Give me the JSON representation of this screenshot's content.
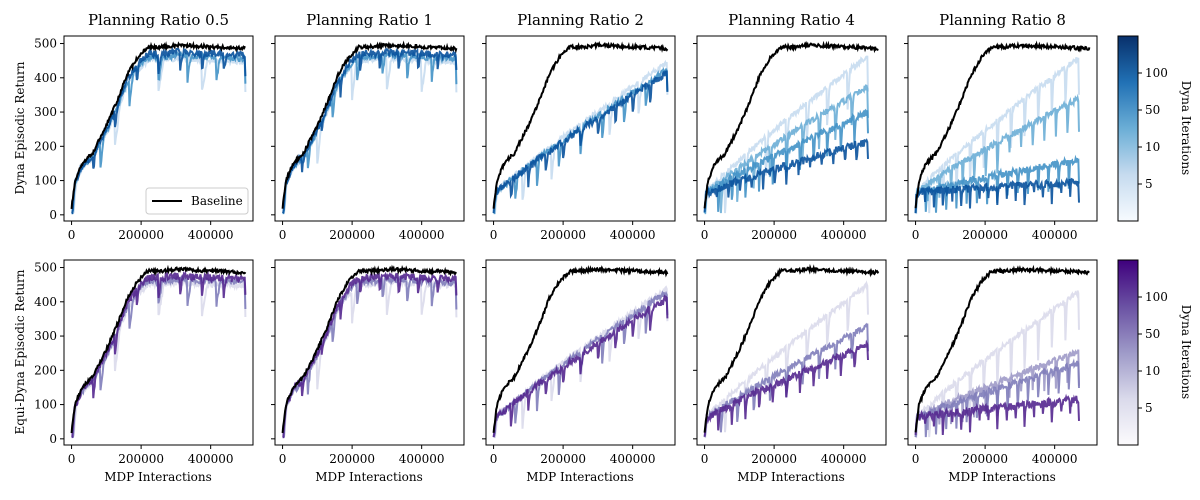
{
  "figure": {
    "legend_label": "Baseline",
    "x_label": "MDP Interactions",
    "row_y_labels": [
      "Dyna Episodic Return",
      "Equi-Dyna Episodic Return"
    ],
    "colorbar_label": "Dyna Iterations",
    "colorbar_ticks": [
      "5",
      "10",
      "50",
      "100"
    ]
  },
  "chart_data": {
    "type": "line",
    "xlim": [
      0,
      500000
    ],
    "ylim": [
      0,
      500
    ],
    "xticks": [
      0,
      200000,
      400000
    ],
    "yticks": [
      0,
      100,
      200,
      300,
      400,
      500
    ],
    "planning_ratios": [
      0.5,
      1,
      2,
      4,
      8
    ],
    "panel_titles": [
      "Planning Ratio 0.5",
      "Planning Ratio 1",
      "Planning Ratio 2",
      "Planning Ratio 4",
      "Planning Ratio 8"
    ],
    "rows": [
      "Dyna",
      "Equi-Dyna"
    ],
    "colormaps": {
      "Dyna": "Blues",
      "Equi-Dyna": "Purples"
    },
    "baseline": {
      "name": "Baseline",
      "color": "#000000",
      "x": [
        0,
        10000,
        30000,
        60000,
        100000,
        130000,
        160000,
        190000,
        220000,
        260000,
        300000,
        350000,
        400000,
        450000,
        500000
      ],
      "y": [
        20,
        100,
        150,
        180,
        260,
        330,
        410,
        460,
        490,
        490,
        495,
        493,
        490,
        488,
        485
      ]
    },
    "approximate_final_returns": {
      "Dyna": {
        "0.5": [
          485,
          480,
          480
        ],
        "1": [
          480,
          475,
          480
        ],
        "2": [
          445,
          425,
          415
        ],
        "4": [
          465,
          375,
          300,
          215
        ],
        "8": [
          460,
          340,
          160,
          95
        ]
      },
      "Equi-Dyna": {
        "0.5": [
          485,
          480,
          480
        ],
        "1": [
          485,
          480,
          480
        ],
        "2": [
          440,
          430,
          410
        ],
        "4": [
          450,
          330,
          275
        ],
        "8": [
          430,
          255,
          220,
          115
        ]
      }
    }
  }
}
